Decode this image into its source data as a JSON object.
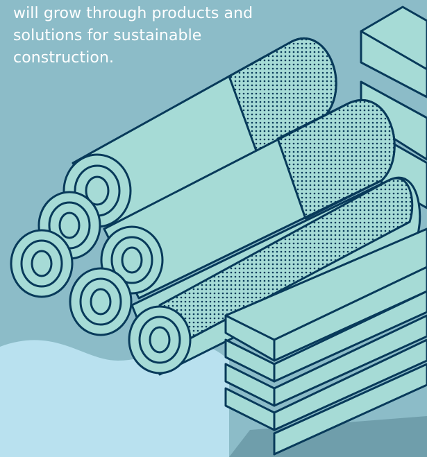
{
  "caption": {
    "lines": [
      "will grow through products and",
      "solutions for sustainable",
      "construction."
    ]
  },
  "colors": {
    "background": "#8cbcc8",
    "background_light": "#b9e1ef",
    "background_dark": "#6f9eab",
    "material_fill": "#a6dbd6",
    "outline": "#083a5a",
    "text": "#ffffff"
  },
  "illustration": {
    "subject": "building-materials-illustration",
    "elements": [
      "pipe-rolls",
      "lumber-planks",
      "stacked-boards"
    ]
  }
}
